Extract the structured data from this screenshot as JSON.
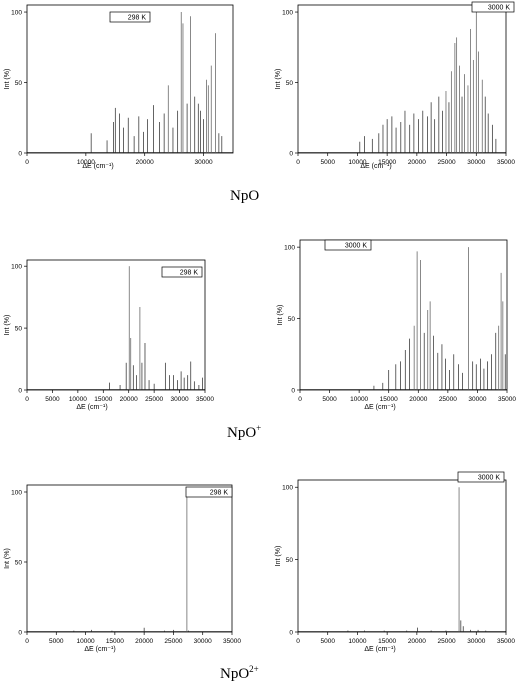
{
  "captions": [
    {
      "base": "NpO",
      "sup": ""
    },
    {
      "base": "NpO",
      "sup": "+"
    },
    {
      "base": "NpO",
      "sup": "2+"
    }
  ],
  "chart_data": [
    {
      "type": "bar",
      "species": "NpO",
      "legend": "298 K",
      "xlabel": "ΔE (cm⁻¹)",
      "ylabel": "Int (%)",
      "xlim": [
        0,
        35000
      ],
      "ylim": [
        0,
        105
      ],
      "xticks": [
        0,
        10000,
        20000,
        30000
      ],
      "yticks": [
        0,
        50,
        100
      ],
      "peaks": [
        [
          10900,
          14
        ],
        [
          13600,
          9
        ],
        [
          14700,
          22
        ],
        [
          15000,
          32
        ],
        [
          15700,
          28
        ],
        [
          16400,
          18
        ],
        [
          17200,
          25
        ],
        [
          18200,
          12
        ],
        [
          19000,
          26
        ],
        [
          19800,
          15
        ],
        [
          20500,
          24
        ],
        [
          21500,
          34
        ],
        [
          22500,
          22
        ],
        [
          23300,
          28
        ],
        [
          24000,
          48
        ],
        [
          24800,
          18
        ],
        [
          25600,
          30
        ],
        [
          26200,
          100
        ],
        [
          26500,
          92
        ],
        [
          27200,
          35
        ],
        [
          27800,
          97
        ],
        [
          28500,
          40
        ],
        [
          29100,
          35
        ],
        [
          29500,
          30
        ],
        [
          30000,
          24
        ],
        [
          30500,
          52
        ],
        [
          30800,
          48
        ],
        [
          31300,
          62
        ],
        [
          32000,
          85
        ],
        [
          32600,
          14
        ],
        [
          33100,
          12
        ]
      ]
    },
    {
      "type": "bar",
      "species": "NpO",
      "legend": "3000 K",
      "xlabel": "ΔE (cm⁻¹)",
      "ylabel": "Int (%)",
      "xlim": [
        0,
        35000
      ],
      "ylim": [
        0,
        105
      ],
      "xticks": [
        0,
        5000,
        10000,
        15000,
        20000,
        25000,
        30000,
        35000
      ],
      "yticks": [
        0,
        50,
        100
      ],
      "peaks": [
        [
          10400,
          8
        ],
        [
          11200,
          12
        ],
        [
          12500,
          10
        ],
        [
          13600,
          14
        ],
        [
          14300,
          20
        ],
        [
          15000,
          24
        ],
        [
          15800,
          26
        ],
        [
          16500,
          18
        ],
        [
          17300,
          22
        ],
        [
          18000,
          30
        ],
        [
          18800,
          20
        ],
        [
          19500,
          28
        ],
        [
          20300,
          24
        ],
        [
          21000,
          30
        ],
        [
          21800,
          26
        ],
        [
          22400,
          36
        ],
        [
          23000,
          24
        ],
        [
          23700,
          40
        ],
        [
          24300,
          30
        ],
        [
          24900,
          44
        ],
        [
          25400,
          36
        ],
        [
          25800,
          58
        ],
        [
          26400,
          78
        ],
        [
          26700,
          82
        ],
        [
          27200,
          62
        ],
        [
          27600,
          40
        ],
        [
          28000,
          56
        ],
        [
          28600,
          48
        ],
        [
          29000,
          88
        ],
        [
          29500,
          66
        ],
        [
          30000,
          100
        ],
        [
          30400,
          72
        ],
        [
          31000,
          52
        ],
        [
          31500,
          40
        ],
        [
          32000,
          28
        ],
        [
          32700,
          20
        ],
        [
          33300,
          10
        ]
      ]
    },
    {
      "type": "bar",
      "species": "NpO+",
      "legend": "298 K",
      "xlabel": "ΔE (cm⁻¹)",
      "ylabel": "Int (%)",
      "xlim": [
        0,
        35000
      ],
      "ylim": [
        0,
        105
      ],
      "xticks": [
        0,
        5000,
        10000,
        15000,
        20000,
        25000,
        30000,
        35000
      ],
      "yticks": [
        0,
        50,
        100
      ],
      "peaks": [
        [
          16200,
          6
        ],
        [
          18300,
          4
        ],
        [
          19500,
          22
        ],
        [
          20100,
          100
        ],
        [
          20400,
          42
        ],
        [
          20900,
          20
        ],
        [
          21500,
          12
        ],
        [
          22200,
          67
        ],
        [
          22600,
          22
        ],
        [
          23200,
          38
        ],
        [
          24000,
          8
        ],
        [
          25000,
          5
        ],
        [
          27200,
          22
        ],
        [
          28000,
          12
        ],
        [
          28800,
          12
        ],
        [
          29600,
          8
        ],
        [
          30300,
          15
        ],
        [
          30900,
          10
        ],
        [
          31600,
          12
        ],
        [
          32200,
          23
        ],
        [
          32900,
          7
        ],
        [
          33800,
          4
        ],
        [
          34500,
          10
        ]
      ]
    },
    {
      "type": "bar",
      "species": "NpO+",
      "legend": "3000 K",
      "xlabel": "ΔE (cm⁻¹)",
      "ylabel": "Int (%)",
      "xlim": [
        0,
        35000
      ],
      "ylim": [
        0,
        105
      ],
      "xticks": [
        0,
        5000,
        10000,
        15000,
        20000,
        25000,
        30000,
        35000
      ],
      "yticks": [
        0,
        50,
        100
      ],
      "peaks": [
        [
          12500,
          3
        ],
        [
          14000,
          5
        ],
        [
          15000,
          14
        ],
        [
          16200,
          18
        ],
        [
          17000,
          20
        ],
        [
          17800,
          28
        ],
        [
          18500,
          36
        ],
        [
          19300,
          45
        ],
        [
          19800,
          97
        ],
        [
          20400,
          91
        ],
        [
          21000,
          40
        ],
        [
          21600,
          56
        ],
        [
          22000,
          62
        ],
        [
          22600,
          38
        ],
        [
          23300,
          26
        ],
        [
          24000,
          32
        ],
        [
          24600,
          22
        ],
        [
          25300,
          14
        ],
        [
          26000,
          25
        ],
        [
          26800,
          18
        ],
        [
          27500,
          12
        ],
        [
          28500,
          100
        ],
        [
          29200,
          20
        ],
        [
          29800,
          18
        ],
        [
          30500,
          22
        ],
        [
          31100,
          15
        ],
        [
          31700,
          20
        ],
        [
          32400,
          25
        ],
        [
          33100,
          40
        ],
        [
          33600,
          45
        ],
        [
          34000,
          82
        ],
        [
          34300,
          62
        ],
        [
          34700,
          25
        ]
      ]
    },
    {
      "type": "bar",
      "species": "NpO2+",
      "legend": "298 K",
      "xlabel": "ΔE (cm⁻¹)",
      "ylabel": "Int (%)",
      "xlim": [
        0,
        35000
      ],
      "ylim": [
        0,
        105
      ],
      "xticks": [
        0,
        5000,
        10000,
        15000,
        20000,
        25000,
        30000,
        35000
      ],
      "yticks": [
        0,
        50,
        100
      ],
      "peaks": [
        [
          8000,
          1
        ],
        [
          11000,
          1.5
        ],
        [
          14500,
          1
        ],
        [
          20000,
          3
        ],
        [
          23500,
          1
        ],
        [
          25000,
          1.5
        ],
        [
          27300,
          100
        ],
        [
          27600,
          1
        ]
      ]
    },
    {
      "type": "bar",
      "species": "NpO2+",
      "legend": "3000 K",
      "xlabel": "ΔE (cm⁻¹)",
      "ylabel": "Int (%)",
      "xlim": [
        0,
        35000
      ],
      "ylim": [
        0,
        105
      ],
      "xticks": [
        0,
        5000,
        10000,
        15000,
        20000,
        25000,
        30000,
        35000
      ],
      "yticks": [
        0,
        50,
        100
      ],
      "peaks": [
        [
          4200,
          0.5
        ],
        [
          8400,
          1
        ],
        [
          11200,
          1
        ],
        [
          14500,
          1
        ],
        [
          18300,
          1
        ],
        [
          20100,
          3
        ],
        [
          22400,
          1
        ],
        [
          24900,
          1
        ],
        [
          27100,
          100
        ],
        [
          27400,
          8
        ],
        [
          27800,
          4
        ],
        [
          29000,
          1.5
        ],
        [
          30300,
          1.5
        ],
        [
          31600,
          1
        ]
      ]
    }
  ]
}
